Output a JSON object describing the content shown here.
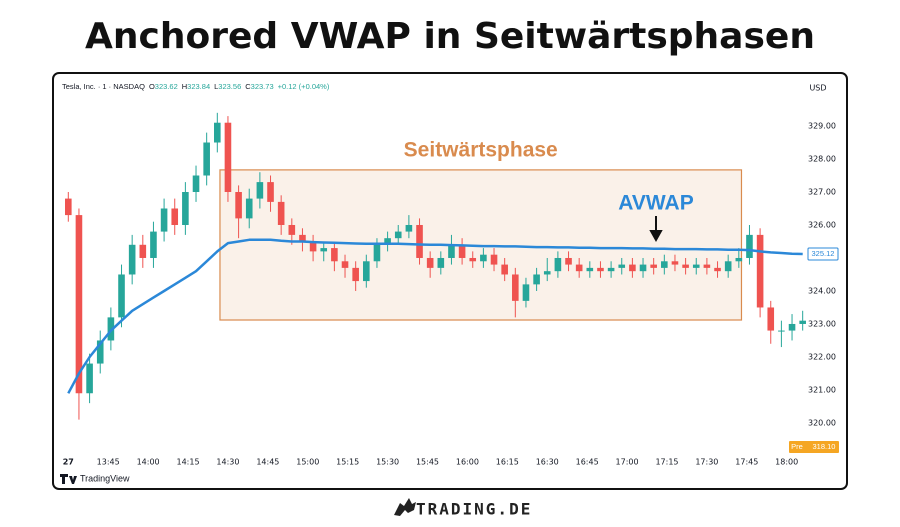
{
  "title": "Anchored VWAP in Seitwärtsphasen",
  "chart_data": {
    "type": "candlestick",
    "header": {
      "symbol": "Tesla, Inc. · 1 · NASDAQ",
      "ohlc": [
        {
          "label": "O",
          "value": 323.62
        },
        {
          "label": "H",
          "value": 323.84
        },
        {
          "label": "L",
          "value": 323.56
        },
        {
          "label": "C",
          "value": 323.73
        }
      ],
      "change": "+0.12 (+0.04%)"
    },
    "currency": "USD",
    "x": [
      "13:30",
      "13:34",
      "13:38",
      "13:42",
      "13:46",
      "13:50",
      "13:54",
      "13:58",
      "14:02",
      "14:06",
      "14:10",
      "14:14",
      "14:18",
      "14:22",
      "14:26",
      "14:30",
      "14:34",
      "14:38",
      "14:42",
      "14:46",
      "14:50",
      "14:54",
      "14:58",
      "15:02",
      "15:06",
      "15:10",
      "15:14",
      "15:18",
      "15:22",
      "15:26",
      "15:30",
      "15:34",
      "15:38",
      "15:42",
      "15:46",
      "15:50",
      "15:54",
      "15:58",
      "16:02",
      "16:06",
      "16:10",
      "16:14",
      "16:18",
      "16:22",
      "16:26",
      "16:30",
      "16:34",
      "16:38",
      "16:42",
      "16:46",
      "16:50",
      "16:54",
      "16:58",
      "17:02",
      "17:06",
      "17:10",
      "17:14",
      "17:18",
      "17:22",
      "17:26",
      "17:30",
      "17:34",
      "17:38",
      "17:42",
      "17:46",
      "17:50",
      "17:54",
      "17:58",
      "18:02",
      "18:06"
    ],
    "open": [
      326.8,
      326.3,
      320.9,
      321.8,
      322.5,
      323.2,
      324.5,
      325.4,
      325.0,
      325.8,
      326.5,
      326.0,
      327.0,
      327.5,
      328.5,
      329.1,
      327.0,
      326.2,
      326.8,
      327.3,
      326.7,
      326.0,
      325.7,
      325.5,
      325.2,
      325.3,
      324.9,
      324.7,
      324.3,
      324.9,
      325.4,
      325.6,
      325.8,
      326.0,
      325.0,
      324.7,
      325.0,
      325.4,
      325.0,
      324.9,
      325.1,
      324.8,
      324.5,
      323.7,
      324.2,
      324.5,
      324.6,
      325.0,
      324.8,
      324.6,
      324.7,
      324.6,
      324.7,
      324.8,
      324.6,
      324.8,
      324.7,
      324.9,
      324.8,
      324.7,
      324.8,
      324.7,
      324.6,
      324.9,
      325.0,
      325.7,
      323.5,
      322.8,
      322.8,
      323.0
    ],
    "high": [
      327.0,
      326.5,
      322.1,
      322.8,
      323.5,
      324.8,
      325.7,
      325.7,
      326.1,
      326.8,
      326.8,
      327.3,
      327.8,
      328.8,
      329.4,
      329.3,
      327.2,
      327.1,
      327.6,
      327.5,
      326.9,
      326.2,
      325.9,
      325.7,
      325.5,
      325.5,
      325.1,
      324.9,
      325.1,
      325.6,
      325.8,
      326.0,
      326.3,
      326.2,
      325.2,
      325.2,
      325.7,
      325.6,
      325.2,
      325.3,
      325.3,
      325.0,
      324.7,
      324.4,
      324.7,
      325.0,
      325.2,
      325.2,
      325.0,
      324.9,
      324.9,
      324.9,
      325.0,
      325.0,
      325.0,
      325.0,
      325.1,
      325.1,
      325.0,
      325.0,
      325.0,
      324.9,
      325.1,
      325.3,
      326.0,
      325.9,
      323.7,
      323.1,
      323.3,
      323.4
    ],
    "low": [
      326.1,
      320.1,
      320.6,
      321.5,
      322.2,
      322.9,
      324.2,
      324.7,
      324.7,
      325.5,
      325.7,
      325.7,
      326.7,
      327.2,
      328.2,
      326.7,
      325.6,
      325.9,
      326.5,
      326.4,
      325.7,
      325.4,
      325.2,
      324.9,
      324.9,
      324.6,
      324.4,
      324.0,
      324.1,
      324.7,
      325.2,
      325.4,
      325.6,
      324.8,
      324.4,
      324.5,
      324.8,
      324.8,
      324.7,
      324.7,
      324.6,
      324.3,
      323.2,
      323.5,
      324.0,
      324.3,
      324.4,
      324.6,
      324.4,
      324.4,
      324.4,
      324.4,
      324.5,
      324.4,
      324.4,
      324.5,
      324.5,
      324.6,
      324.5,
      324.5,
      324.5,
      324.4,
      324.4,
      324.7,
      324.8,
      323.2,
      322.4,
      322.3,
      322.5,
      322.8
    ],
    "close": [
      326.3,
      320.9,
      321.8,
      322.5,
      323.2,
      324.5,
      325.4,
      325.0,
      325.8,
      326.5,
      326.0,
      327.0,
      327.5,
      328.5,
      329.1,
      327.0,
      326.2,
      326.8,
      327.3,
      326.7,
      326.0,
      325.7,
      325.5,
      325.2,
      325.3,
      324.9,
      324.7,
      324.3,
      324.9,
      325.4,
      325.6,
      325.8,
      326.0,
      325.0,
      324.7,
      325.0,
      325.4,
      325.0,
      324.9,
      325.1,
      324.8,
      324.5,
      323.7,
      324.2,
      324.5,
      324.6,
      325.0,
      324.8,
      324.6,
      324.7,
      324.6,
      324.7,
      324.8,
      324.6,
      324.8,
      324.7,
      324.9,
      324.8,
      324.7,
      324.8,
      324.7,
      324.6,
      324.9,
      325.0,
      325.7,
      323.5,
      322.8,
      322.8,
      323.0,
      323.1
    ],
    "up_color": "#26a69a",
    "down_color": "#ef5350",
    "vwap": {
      "color": "#2b88d8",
      "values": [
        320.9,
        321.5,
        322.0,
        322.4,
        322.8,
        323.1,
        323.4,
        323.6,
        323.8,
        324.0,
        324.2,
        324.4,
        324.6,
        324.9,
        325.2,
        325.45,
        325.5,
        325.55,
        325.55,
        325.55,
        325.52,
        325.5,
        325.5,
        325.48,
        325.47,
        325.46,
        325.45,
        325.44,
        325.43,
        325.43,
        325.43,
        325.43,
        325.42,
        325.41,
        325.4,
        325.4,
        325.39,
        325.38,
        325.37,
        325.36,
        325.36,
        325.35,
        325.35,
        325.34,
        325.33,
        325.33,
        325.32,
        325.32,
        325.31,
        325.31,
        325.3,
        325.3,
        325.3,
        325.29,
        325.29,
        325.28,
        325.28,
        325.27,
        325.27,
        325.27,
        325.26,
        325.26,
        325.25,
        325.25,
        325.24,
        325.2,
        325.17,
        325.15,
        325.13,
        325.12
      ],
      "last": 325.12
    },
    "pre": {
      "label": "Pre",
      "value": {
        "value": 318.1,
        "label": "318.10"
      }
    },
    "xlim": [
      "13:25",
      "18:08"
    ],
    "xticks": [
      {
        "value": "13:30",
        "label": "27"
      },
      "13:45",
      "14:00",
      "14:15",
      "14:30",
      "14:45",
      "15:00",
      "15:15",
      "15:30",
      "15:45",
      "16:00",
      "16:15",
      "16:30",
      "16:45",
      "17:00",
      "17:15",
      "17:30",
      "17:45",
      "18:00"
    ],
    "ylim": [
      319.18,
      329.94
    ],
    "yticks": [
      {
        "value": 320,
        "label": "320.00"
      },
      {
        "value": 321,
        "label": "321.00"
      },
      {
        "value": 322,
        "label": "322.00"
      },
      {
        "value": 323,
        "label": "323.00"
      },
      {
        "value": 324,
        "label": "324.00"
      },
      {
        "value": 325,
        "label": "325.00"
      },
      {
        "value": 326,
        "label": "326.00"
      },
      {
        "value": 327,
        "label": "327.00"
      },
      {
        "value": 328,
        "label": "328.00"
      },
      {
        "value": 329,
        "label": "329.00"
      }
    ],
    "grid": false,
    "range_box": {
      "label": "Seitwärtsphase",
      "x": [
        "14:27",
        "17:43"
      ],
      "y": [
        323.12,
        327.67
      ],
      "color": "#d98b4e"
    },
    "arrow_label": "AVWAP"
  },
  "footer": {
    "platform": "TradingView",
    "brand": "TRADING.DE"
  }
}
